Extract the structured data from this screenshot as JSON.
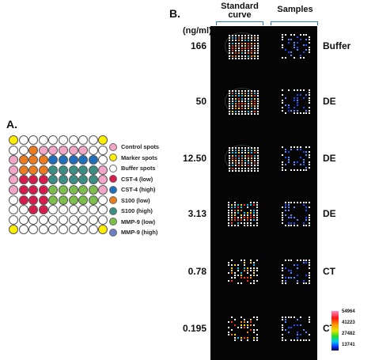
{
  "panel_a": {
    "label": "A.",
    "grid_rows": [
      [
        "Y",
        "W",
        "W",
        "W",
        "W",
        "W",
        "W",
        "W",
        "W",
        "Y"
      ],
      [
        "W",
        "W",
        "O",
        "P",
        "P",
        "P",
        "P",
        "P",
        "W",
        "W"
      ],
      [
        "P",
        "O",
        "O",
        "O",
        "B",
        "B",
        "B",
        "B",
        "B",
        "W"
      ],
      [
        "P",
        "O",
        "O",
        "O",
        "T",
        "T",
        "T",
        "T",
        "T",
        "P"
      ],
      [
        "P",
        "R",
        "R",
        "R",
        "T",
        "T",
        "T",
        "T",
        "T",
        "P"
      ],
      [
        "P",
        "R",
        "R",
        "R",
        "G",
        "G",
        "G",
        "G",
        "G",
        "P"
      ],
      [
        "W",
        "R",
        "R",
        "R",
        "G",
        "G",
        "G",
        "G",
        "G",
        "W"
      ],
      [
        "W",
        "W",
        "R",
        "R",
        "W",
        "W",
        "W",
        "W",
        "W",
        "W"
      ],
      [
        "W",
        "W",
        "W",
        "W",
        "W",
        "W",
        "W",
        "W",
        "W",
        "W"
      ],
      [
        "Y",
        "W",
        "W",
        "W",
        "W",
        "W",
        "W",
        "W",
        "W",
        "Y"
      ]
    ],
    "colors": {
      "Y": "#ffee00",
      "W": "#ffffff",
      "P": "#f4a6c8",
      "R": "#d81b4a",
      "B": "#1f6fbf",
      "O": "#ee7c1c",
      "T": "#3a8f84",
      "G": "#7cc04b",
      "V": "#6c7fc4"
    },
    "legend": [
      {
        "label": "Control spots",
        "color": "#f4a6c8"
      },
      {
        "label": "Marker spots",
        "color": "#ffee00"
      },
      {
        "label": "Buffer spots",
        "color": "#ffffff"
      },
      {
        "label": "CST-4 (low)",
        "color": "#d81b4a"
      },
      {
        "label": "CST-4 (high)",
        "color": "#1f6fbf"
      },
      {
        "label": "S100 (low)",
        "color": "#ee7c1c"
      },
      {
        "label": "S100 (high)",
        "color": "#3a8f84"
      },
      {
        "label": "MMP-9 (low)",
        "color": "#7cc04b"
      },
      {
        "label": "MMP-9 (high)",
        "color": "#6c7fc4"
      }
    ]
  },
  "panel_b": {
    "label": "B.",
    "header_standard_line1": "Standard",
    "header_standard_line2": "curve",
    "header_samples": "Samples",
    "unit": "(ng/ml)",
    "rows": [
      {
        "conc": "166",
        "sample": "Buffer",
        "intensity": 1.0
      },
      {
        "conc": "50",
        "sample": "DE",
        "intensity": 0.85
      },
      {
        "conc": "12.50",
        "sample": "DE",
        "intensity": 0.65
      },
      {
        "conc": "3.13",
        "sample": "DE",
        "intensity": 0.45
      },
      {
        "conc": "0.78",
        "sample": "CT",
        "intensity": 0.25
      },
      {
        "conc": "0.195",
        "sample": "CT",
        "intensity": 0.15
      }
    ],
    "colorbar_ticks": [
      "54964",
      "41223",
      "27482",
      "13741"
    ]
  }
}
